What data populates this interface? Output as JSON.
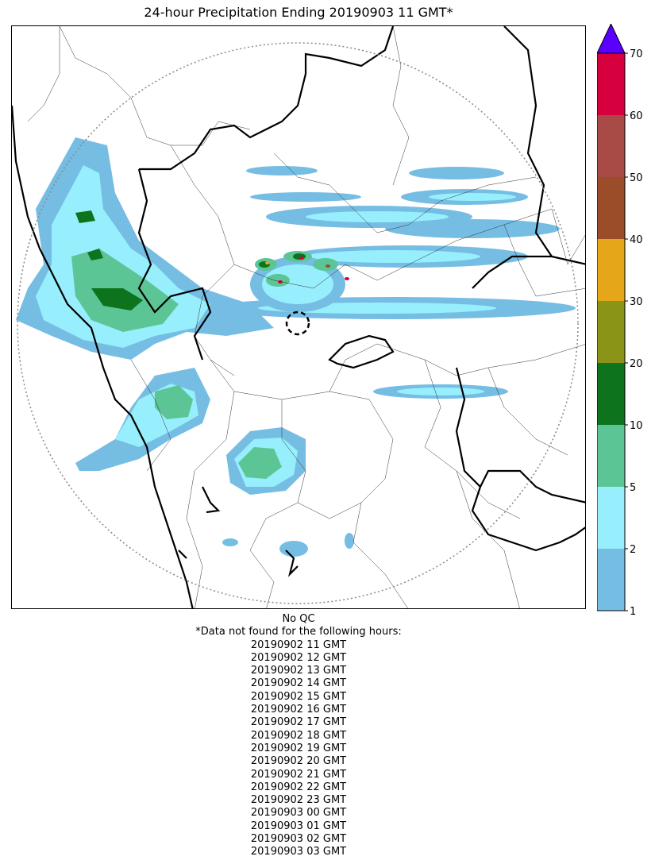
{
  "title": "24-hour Precipitation Ending 20190903 11 GMT*",
  "colorbar": {
    "tick_labels": [
      "1",
      "2",
      "5",
      "10",
      "20",
      "30",
      "40",
      "50",
      "60",
      "70"
    ],
    "bins": [
      {
        "from": 1,
        "to": 2,
        "color": "#76bde3"
      },
      {
        "from": 2,
        "to": 5,
        "color": "#97eefc"
      },
      {
        "from": 5,
        "to": 10,
        "color": "#5bc595"
      },
      {
        "from": 10,
        "to": 20,
        "color": "#0d731d"
      },
      {
        "from": 20,
        "to": 30,
        "color": "#8a9416"
      },
      {
        "from": 30,
        "to": 40,
        "color": "#e6a619"
      },
      {
        "from": 40,
        "to": 50,
        "color": "#9a4d28"
      },
      {
        "from": 50,
        "to": 60,
        "color": "#a84a45"
      },
      {
        "from": 60,
        "to": 70,
        "color": "#d6003f"
      }
    ],
    "extend_color": "#5a00ff"
  },
  "notes": {
    "qc": "No QC",
    "missing_header": "*Data not found for the following hours:",
    "missing_hours": [
      "20190902 11 GMT",
      "20190902 12 GMT",
      "20190902 13 GMT",
      "20190902 14 GMT",
      "20190902 15 GMT",
      "20190902 16 GMT",
      "20190902 17 GMT",
      "20190902 18 GMT",
      "20190902 19 GMT",
      "20190902 20 GMT",
      "20190902 21 GMT",
      "20190902 22 GMT",
      "20190902 23 GMT",
      "20190903 00 GMT",
      "20190903 01 GMT",
      "20190903 02 GMT",
      "20190903 03 GMT"
    ]
  }
}
